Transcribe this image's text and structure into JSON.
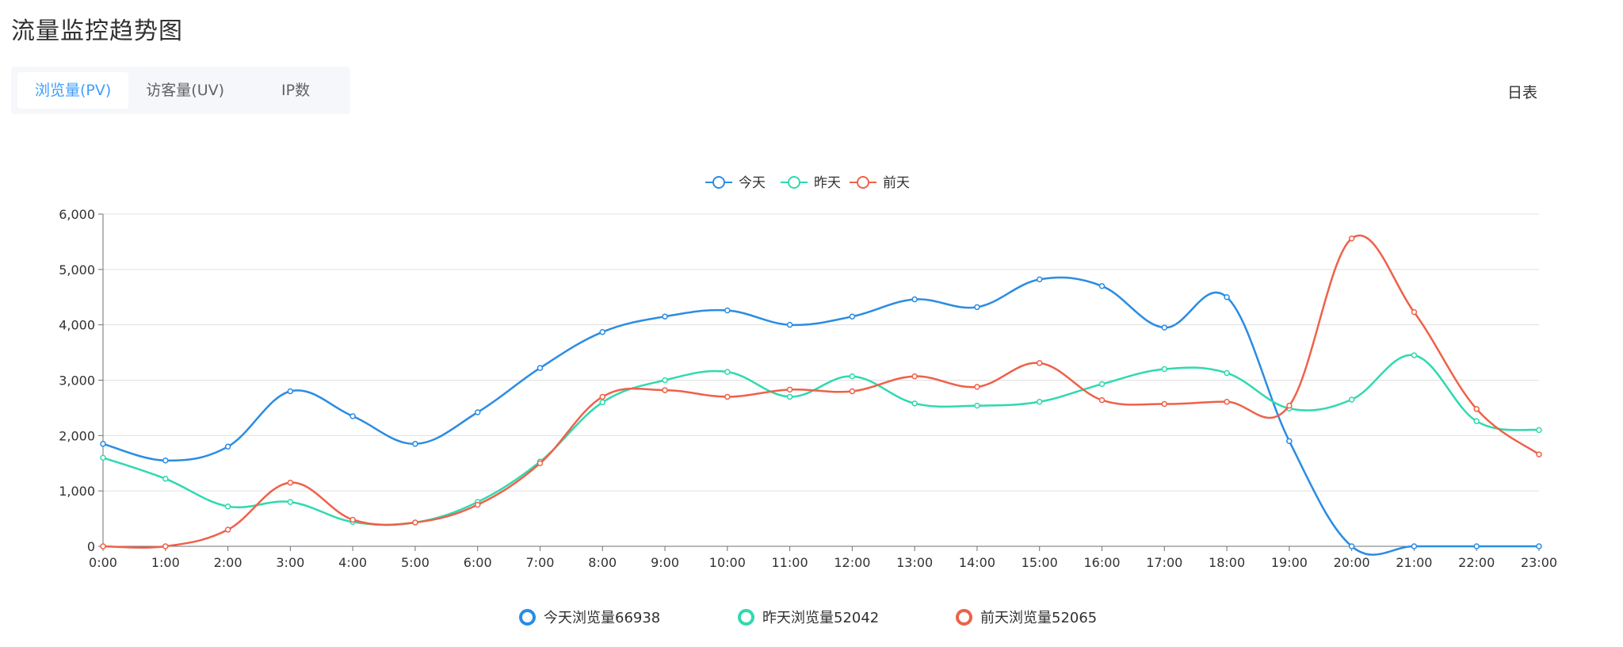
{
  "page": {
    "title": "流量监控趋势图",
    "report_link": "日表"
  },
  "tabs": [
    {
      "label": "浏览量(PV)",
      "active": true
    },
    {
      "label": "访客量(UV)",
      "active": false
    },
    {
      "label": "IP数",
      "active": false
    }
  ],
  "summary": [
    {
      "label": "今天浏览量66938",
      "color": "#2b8ce3"
    },
    {
      "label": "昨天浏览量52042",
      "color": "#2fd9b0"
    },
    {
      "label": "前天浏览量52065",
      "color": "#ee6149"
    }
  ],
  "chart_data": {
    "type": "line",
    "smooth": true,
    "categories": [
      "0:00",
      "1:00",
      "2:00",
      "3:00",
      "4:00",
      "5:00",
      "6:00",
      "7:00",
      "8:00",
      "9:00",
      "10:00",
      "11:00",
      "12:00",
      "13:00",
      "14:00",
      "15:00",
      "16:00",
      "17:00",
      "18:00",
      "19:00",
      "20:00",
      "21:00",
      "22:00",
      "23:00"
    ],
    "ylim": [
      0,
      6000
    ],
    "yticks": [
      0,
      1000,
      2000,
      3000,
      4000,
      5000,
      6000
    ],
    "ytick_labels": [
      "0",
      "1,000",
      "2,000",
      "3,000",
      "4,000",
      "5,000",
      "6,000"
    ],
    "grid": true,
    "legend_position": "top-center",
    "series": [
      {
        "name": "今天",
        "color": "#2b8ce3",
        "values": [
          1850,
          1550,
          1800,
          2800,
          2350,
          1850,
          2420,
          3220,
          3870,
          4150,
          4260,
          4000,
          4150,
          4460,
          4320,
          4820,
          4700,
          3950,
          4500,
          1900,
          0,
          0,
          0,
          0
        ]
      },
      {
        "name": "昨天",
        "color": "#2fd9b0",
        "values": [
          1600,
          1220,
          720,
          800,
          440,
          430,
          800,
          1530,
          2600,
          3000,
          3150,
          2700,
          3070,
          2580,
          2540,
          2610,
          2930,
          3200,
          3130,
          2490,
          2650,
          3450,
          2260,
          2100
        ]
      },
      {
        "name": "前天",
        "color": "#ee6149",
        "values": [
          0,
          0,
          300,
          1150,
          480,
          430,
          750,
          1500,
          2700,
          2820,
          2700,
          2830,
          2800,
          3070,
          2880,
          3310,
          2640,
          2570,
          2610,
          2540,
          5560,
          4230,
          2480,
          1660
        ]
      }
    ]
  }
}
